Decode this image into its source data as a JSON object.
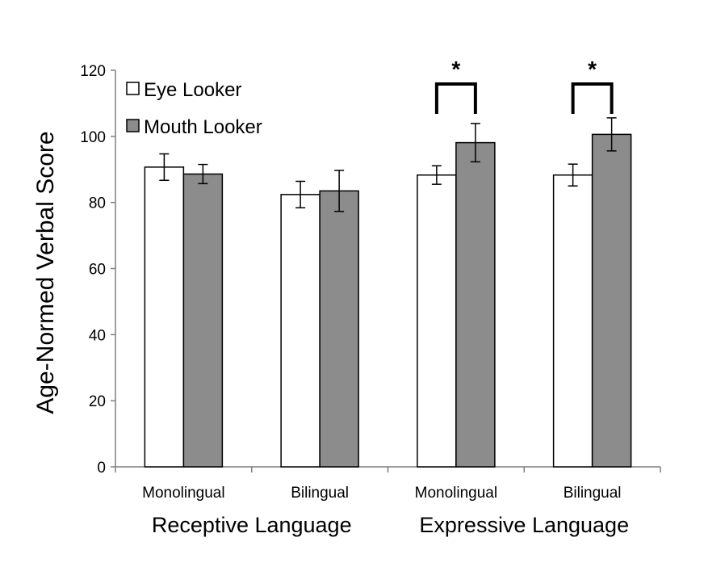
{
  "chart_data": {
    "type": "bar",
    "ylabel": "Age-Normed Verbal Score",
    "ylim": [
      0,
      120
    ],
    "yticks": [
      0,
      20,
      40,
      60,
      80,
      100,
      120
    ],
    "grid": false,
    "legend_position": "top-left",
    "categories": [
      "Monolingual",
      "Bilingual",
      "Monolingual",
      "Bilingual"
    ],
    "groups": [
      {
        "label": "Receptive Language",
        "categories": [
          0,
          1
        ]
      },
      {
        "label": "Expressive Language",
        "categories": [
          2,
          3
        ]
      }
    ],
    "series": [
      {
        "name": "Eye Looker",
        "color": "#ffffff",
        "values": [
          90.7,
          82.4,
          88.3,
          88.3
        ],
        "errors": [
          4.0,
          4.0,
          2.8,
          3.3
        ]
      },
      {
        "name": "Mouth Looker",
        "color": "#8c8c8c",
        "values": [
          88.6,
          83.5,
          98.1,
          100.6
        ],
        "errors": [
          2.9,
          6.2,
          5.8,
          5.0
        ]
      }
    ],
    "significance": [
      {
        "category": 2,
        "label": "*"
      },
      {
        "category": 3,
        "label": "*"
      }
    ]
  }
}
